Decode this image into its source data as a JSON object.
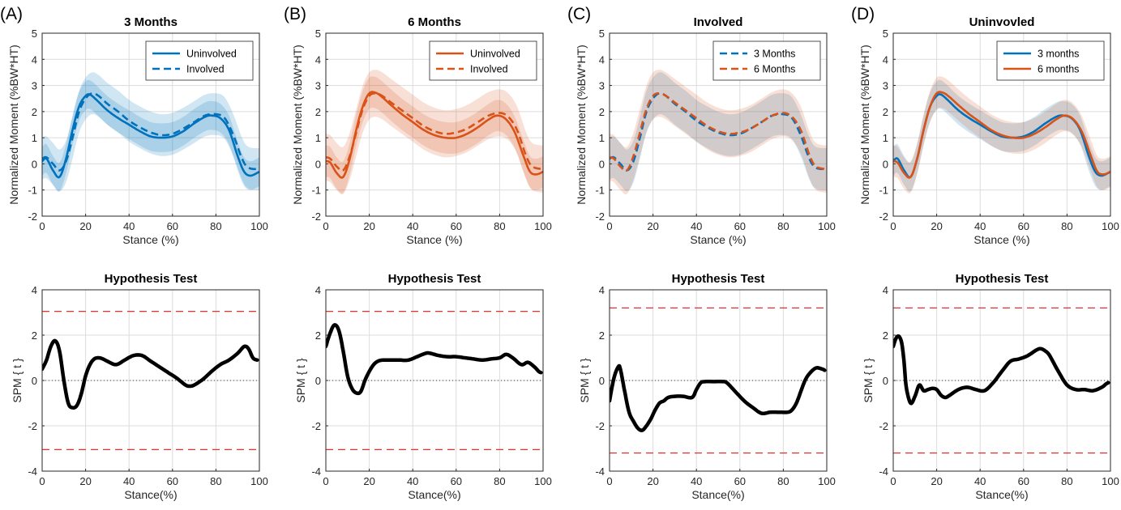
{
  "chart_data": [
    {
      "panel_label": "(A)",
      "type": "line",
      "title": "3 Months",
      "xlabel": "Stance (%)",
      "ylabel": "Normalized Moment (%BW*HT)",
      "xlim": [
        0,
        100
      ],
      "ylim": [
        -2,
        5
      ],
      "xticks": [
        "0",
        "20",
        "40",
        "60",
        "80",
        "100"
      ],
      "yticks": [
        "-2",
        "-1",
        "0",
        "1",
        "2",
        "3",
        "4",
        "5"
      ],
      "grid": true,
      "legend_position": "top-right",
      "series": [
        {
          "name": "Uninvolved",
          "color": "#0072BD",
          "dash": "solid",
          "band_sd": 0.55,
          "x": [
            0,
            2,
            5,
            8,
            11,
            14,
            17,
            20,
            22,
            25,
            30,
            35,
            40,
            45,
            50,
            55,
            60,
            65,
            70,
            75,
            78,
            82,
            86,
            90,
            93,
            96,
            100
          ],
          "y": [
            0.1,
            0.2,
            -0.25,
            -0.5,
            0.2,
            1.3,
            2.2,
            2.6,
            2.65,
            2.45,
            2.05,
            1.75,
            1.5,
            1.25,
            1.05,
            1.0,
            1.05,
            1.25,
            1.55,
            1.8,
            1.85,
            1.75,
            1.3,
            0.3,
            -0.3,
            -0.45,
            -0.3
          ]
        },
        {
          "name": "Involved",
          "color": "#0072BD",
          "dash": "dashed",
          "band_sd": 0.8,
          "x": [
            0,
            2,
            5,
            8,
            11,
            14,
            17,
            20,
            23,
            26,
            30,
            35,
            40,
            45,
            50,
            55,
            60,
            65,
            70,
            75,
            80,
            84,
            88,
            92,
            95,
            100
          ],
          "y": [
            0.2,
            0.25,
            0.0,
            -0.25,
            0.1,
            1.0,
            2.0,
            2.5,
            2.7,
            2.6,
            2.3,
            2.0,
            1.65,
            1.4,
            1.2,
            1.1,
            1.15,
            1.35,
            1.6,
            1.85,
            1.9,
            1.75,
            1.1,
            0.2,
            -0.15,
            -0.2
          ]
        }
      ]
    },
    {
      "panel_label": "(B)",
      "type": "line",
      "title": "6 Months",
      "xlabel": "Stance (%)",
      "ylabel": "Normalized Moment (%BW*HT)",
      "xlim": [
        0,
        100
      ],
      "ylim": [
        -2,
        5
      ],
      "xticks": [
        "0",
        "20",
        "40",
        "60",
        "80",
        "100"
      ],
      "yticks": [
        "-2",
        "-1",
        "0",
        "1",
        "2",
        "3",
        "4",
        "5"
      ],
      "grid": true,
      "legend_position": "top-right",
      "series": [
        {
          "name": "Uninvolved",
          "color": "#D95319",
          "dash": "solid",
          "band_sd": 0.6,
          "x": [
            0,
            2,
            5,
            8,
            11,
            14,
            17,
            20,
            23,
            26,
            30,
            35,
            40,
            45,
            50,
            55,
            60,
            65,
            70,
            75,
            79,
            83,
            87,
            91,
            94,
            97,
            100
          ],
          "y": [
            0.1,
            0.05,
            -0.35,
            -0.5,
            0.2,
            1.3,
            2.2,
            2.7,
            2.72,
            2.55,
            2.25,
            1.9,
            1.6,
            1.3,
            1.1,
            1.0,
            1.0,
            1.15,
            1.4,
            1.7,
            1.85,
            1.7,
            1.2,
            0.3,
            -0.3,
            -0.4,
            -0.3
          ]
        },
        {
          "name": "Involved",
          "color": "#D95319",
          "dash": "dashed",
          "band_sd": 0.9,
          "x": [
            0,
            2,
            5,
            8,
            11,
            14,
            17,
            20,
            23,
            26,
            30,
            35,
            40,
            45,
            50,
            55,
            60,
            65,
            70,
            75,
            80,
            84,
            88,
            92,
            95,
            100
          ],
          "y": [
            0.25,
            0.2,
            -0.1,
            -0.25,
            0.3,
            1.2,
            2.1,
            2.6,
            2.7,
            2.6,
            2.35,
            2.05,
            1.75,
            1.45,
            1.25,
            1.15,
            1.2,
            1.35,
            1.6,
            1.85,
            1.95,
            1.8,
            1.3,
            0.35,
            -0.1,
            -0.2
          ]
        }
      ]
    },
    {
      "panel_label": "(C)",
      "type": "line",
      "title": "Involved",
      "xlabel": "Stance (%)",
      "ylabel": "Normalized Moment (%BW*HT)",
      "xlim": [
        0,
        100
      ],
      "ylim": [
        -2,
        5
      ],
      "xticks": [
        "0",
        "20",
        "40",
        "60",
        "80",
        "100"
      ],
      "yticks": [
        "-2",
        "-1",
        "0",
        "1",
        "2",
        "3",
        "4",
        "5"
      ],
      "grid": true,
      "legend_position": "top-right",
      "series": [
        {
          "name": "3 Months",
          "color": "#0072BD",
          "dash": "dashed",
          "band_sd": 0.8,
          "x": [
            0,
            2,
            5,
            8,
            11,
            14,
            17,
            20,
            23,
            26,
            30,
            35,
            40,
            45,
            50,
            55,
            60,
            65,
            70,
            75,
            80,
            84,
            88,
            92,
            95,
            100
          ],
          "y": [
            0.2,
            0.25,
            0.0,
            -0.25,
            0.1,
            1.0,
            2.0,
            2.5,
            2.7,
            2.6,
            2.3,
            2.0,
            1.65,
            1.4,
            1.2,
            1.1,
            1.15,
            1.35,
            1.6,
            1.85,
            1.9,
            1.75,
            1.1,
            0.2,
            -0.15,
            -0.2
          ]
        },
        {
          "name": "6 Months",
          "color": "#D95319",
          "dash": "dashed",
          "band_sd": 0.9,
          "x": [
            0,
            2,
            5,
            8,
            11,
            14,
            17,
            20,
            23,
            26,
            30,
            35,
            40,
            45,
            50,
            55,
            60,
            65,
            70,
            75,
            80,
            84,
            88,
            92,
            95,
            100
          ],
          "y": [
            0.25,
            0.2,
            -0.1,
            -0.25,
            0.3,
            1.2,
            2.1,
            2.6,
            2.7,
            2.6,
            2.35,
            2.05,
            1.75,
            1.45,
            1.25,
            1.15,
            1.2,
            1.35,
            1.6,
            1.85,
            1.95,
            1.8,
            1.3,
            0.35,
            -0.1,
            -0.2
          ]
        }
      ]
    },
    {
      "panel_label": "(D)",
      "type": "line",
      "title": "Uninvovled",
      "xlabel": "Stance (%)",
      "ylabel": "Normalized Moment (%BW*HT)",
      "xlim": [
        0,
        100
      ],
      "ylim": [
        -2,
        5
      ],
      "xticks": [
        "0",
        "20",
        "40",
        "60",
        "80",
        "100"
      ],
      "yticks": [
        "-2",
        "-1",
        "0",
        "1",
        "2",
        "3",
        "4",
        "5"
      ],
      "grid": true,
      "legend_position": "top-right",
      "series": [
        {
          "name": "3 months",
          "color": "#0072BD",
          "dash": "solid",
          "band_sd": 0.55,
          "x": [
            0,
            2,
            5,
            8,
            11,
            14,
            17,
            20,
            22,
            25,
            30,
            35,
            40,
            45,
            50,
            55,
            60,
            65,
            70,
            75,
            78,
            82,
            86,
            90,
            93,
            96,
            100
          ],
          "y": [
            0.1,
            0.2,
            -0.25,
            -0.5,
            0.2,
            1.3,
            2.2,
            2.6,
            2.65,
            2.45,
            2.05,
            1.75,
            1.5,
            1.25,
            1.05,
            1.0,
            1.05,
            1.25,
            1.55,
            1.8,
            1.85,
            1.75,
            1.3,
            0.3,
            -0.3,
            -0.45,
            -0.3
          ]
        },
        {
          "name": "6 months",
          "color": "#D95319",
          "dash": "solid",
          "band_sd": 0.6,
          "x": [
            0,
            2,
            5,
            8,
            11,
            14,
            17,
            20,
            23,
            26,
            30,
            35,
            40,
            45,
            50,
            55,
            60,
            65,
            70,
            75,
            79,
            83,
            87,
            91,
            94,
            97,
            100
          ],
          "y": [
            0.1,
            0.05,
            -0.35,
            -0.5,
            0.2,
            1.3,
            2.2,
            2.7,
            2.72,
            2.55,
            2.25,
            1.9,
            1.6,
            1.3,
            1.1,
            1.0,
            1.0,
            1.15,
            1.4,
            1.7,
            1.85,
            1.7,
            1.2,
            0.3,
            -0.3,
            -0.4,
            -0.3
          ]
        }
      ]
    },
    {
      "type": "line",
      "title": "Hypothesis Test",
      "xlabel": "Stance(%)",
      "ylabel": "SPM { t }",
      "xlim": [
        0,
        100
      ],
      "ylim": [
        -4,
        4
      ],
      "xticks": [
        "0",
        "20",
        "40",
        "60",
        "80",
        "100"
      ],
      "yticks": [
        "-4",
        "-2",
        "0",
        "2",
        "4"
      ],
      "grid": true,
      "threshold": 3.05,
      "series": [
        {
          "color": "#000000",
          "x": [
            0,
            2,
            4,
            6,
            8,
            10,
            12,
            14,
            16,
            18,
            20,
            22,
            24,
            26,
            28,
            30,
            34,
            38,
            42,
            46,
            50,
            54,
            58,
            62,
            66,
            68,
            70,
            74,
            78,
            82,
            86,
            90,
            93,
            95,
            97,
            99
          ],
          "y": [
            0.5,
            0.9,
            1.5,
            1.75,
            1.3,
            0.0,
            -1.0,
            -1.2,
            -1.1,
            -0.6,
            0.2,
            0.7,
            0.95,
            1.0,
            0.95,
            0.85,
            0.7,
            0.9,
            1.1,
            1.1,
            0.85,
            0.6,
            0.35,
            0.1,
            -0.2,
            -0.25,
            -0.2,
            0.05,
            0.4,
            0.7,
            0.9,
            1.2,
            1.5,
            1.4,
            1.0,
            0.9
          ]
        }
      ]
    },
    {
      "type": "line",
      "title": "Hypothesis Test",
      "xlabel": "Stance(%)",
      "ylabel": "SPM { t }",
      "xlim": [
        0,
        100
      ],
      "ylim": [
        -4,
        4
      ],
      "xticks": [
        "0",
        "20",
        "40",
        "60",
        "80",
        "100"
      ],
      "yticks": [
        "-4",
        "-2",
        "0",
        "2",
        "4"
      ],
      "grid": true,
      "threshold": 3.05,
      "series": [
        {
          "color": "#000000",
          "x": [
            0,
            2,
            4,
            6,
            8,
            10,
            12,
            14,
            16,
            18,
            20,
            22,
            24,
            26,
            28,
            30,
            34,
            38,
            42,
            46,
            48,
            52,
            56,
            60,
            64,
            68,
            72,
            76,
            80,
            83,
            86,
            90,
            93,
            96,
            98,
            99
          ],
          "y": [
            1.5,
            2.1,
            2.45,
            2.2,
            1.3,
            0.2,
            -0.35,
            -0.55,
            -0.5,
            0.0,
            0.4,
            0.7,
            0.85,
            0.9,
            0.9,
            0.9,
            0.9,
            0.9,
            1.05,
            1.2,
            1.2,
            1.1,
            1.05,
            1.05,
            1.0,
            0.95,
            0.9,
            0.95,
            1.0,
            1.15,
            1.0,
            0.7,
            0.8,
            0.6,
            0.4,
            0.35
          ]
        }
      ]
    },
    {
      "type": "line",
      "title": "Hypothesis Test",
      "xlabel": "Stance(%)",
      "ylabel": "SPM { t }",
      "xlim": [
        0,
        100
      ],
      "ylim": [
        -4,
        4
      ],
      "xticks": [
        "0",
        "20",
        "40",
        "60",
        "80",
        "100"
      ],
      "yticks": [
        "-4",
        "-2",
        "0",
        "2",
        "4"
      ],
      "grid": true,
      "threshold": 3.2,
      "series": [
        {
          "color": "#000000",
          "x": [
            0,
            2,
            4,
            5,
            7,
            9,
            11,
            13,
            15,
            17,
            19,
            21,
            23,
            25,
            27,
            30,
            34,
            38,
            40,
            42,
            44,
            48,
            52,
            54,
            58,
            62,
            66,
            70,
            74,
            78,
            82,
            84,
            86,
            88,
            90,
            92,
            95,
            98,
            99
          ],
          "y": [
            -0.9,
            0.1,
            0.6,
            0.5,
            -0.5,
            -1.4,
            -1.8,
            -2.1,
            -2.2,
            -2.0,
            -1.7,
            -1.3,
            -1.0,
            -0.9,
            -0.75,
            -0.7,
            -0.7,
            -0.75,
            -0.4,
            -0.1,
            -0.05,
            -0.05,
            -0.05,
            -0.1,
            -0.5,
            -0.9,
            -1.2,
            -1.45,
            -1.4,
            -1.4,
            -1.4,
            -1.3,
            -1.0,
            -0.5,
            0.0,
            0.3,
            0.55,
            0.5,
            0.45
          ]
        }
      ]
    },
    {
      "type": "line",
      "title": "Hypothesis Test",
      "xlabel": "Stance(%)",
      "ylabel": "SPM { t }",
      "xlim": [
        0,
        100
      ],
      "ylim": [
        -4,
        4
      ],
      "xticks": [
        "0",
        "20",
        "40",
        "60",
        "80",
        "100"
      ],
      "yticks": [
        "-4",
        "-2",
        "0",
        "2",
        "4"
      ],
      "grid": true,
      "threshold": 3.2,
      "series": [
        {
          "color": "#000000",
          "x": [
            0,
            1,
            2,
            3,
            4,
            5,
            6,
            8,
            10,
            12,
            14,
            16,
            18,
            20,
            22,
            24,
            26,
            30,
            34,
            38,
            42,
            46,
            50,
            54,
            58,
            62,
            66,
            68,
            70,
            72,
            76,
            80,
            84,
            88,
            92,
            96,
            98,
            99
          ],
          "y": [
            1.5,
            1.8,
            1.95,
            1.9,
            1.6,
            0.8,
            -0.3,
            -1.0,
            -0.7,
            -0.2,
            -0.45,
            -0.4,
            -0.35,
            -0.4,
            -0.65,
            -0.75,
            -0.65,
            -0.4,
            -0.3,
            -0.4,
            -0.45,
            -0.1,
            0.4,
            0.85,
            0.95,
            1.1,
            1.35,
            1.4,
            1.3,
            1.1,
            0.4,
            -0.2,
            -0.4,
            -0.4,
            -0.45,
            -0.3,
            -0.15,
            -0.1
          ]
        }
      ]
    }
  ]
}
